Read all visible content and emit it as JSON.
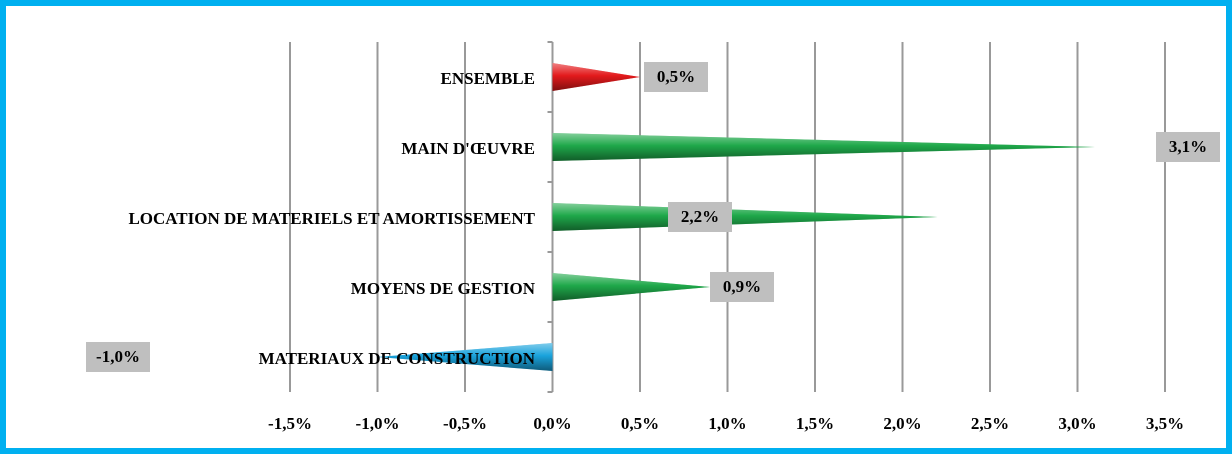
{
  "chart_data": {
    "type": "bar",
    "orientation": "horizontal",
    "categories": [
      "ENSEMBLE",
      "MAIN D'ŒUVRE",
      "LOCATION DE MATERIELS ET AMORTISSEMENT",
      "MOYENS DE GESTION",
      "MATERIAUX DE CONSTRUCTION"
    ],
    "values": [
      0.5,
      3.1,
      2.2,
      0.9,
      -1.0
    ],
    "value_labels": [
      "0,5%",
      "3,1%",
      "2,2%",
      "0,9%",
      "-1,0%"
    ],
    "colors": [
      "#e31a1c",
      "#1fa84a",
      "#1fa84a",
      "#1fa84a",
      "#1aa3dc"
    ],
    "xlim": [
      -1.5,
      3.5
    ],
    "xticks": [
      {
        "value": -1.5,
        "label": "-1,5%"
      },
      {
        "value": -1.0,
        "label": "-1,0%"
      },
      {
        "value": -0.5,
        "label": "-0,5%"
      },
      {
        "value": 0.0,
        "label": "0,0%"
      },
      {
        "value": 0.5,
        "label": "0,5%"
      },
      {
        "value": 1.0,
        "label": "1,0%"
      },
      {
        "value": 1.5,
        "label": "1,5%"
      },
      {
        "value": 2.0,
        "label": "2,0%"
      },
      {
        "value": 2.5,
        "label": "2,5%"
      },
      {
        "value": 3.0,
        "label": "3,0%"
      },
      {
        "value": 3.5,
        "label": "3,5%"
      }
    ],
    "grid": true
  }
}
